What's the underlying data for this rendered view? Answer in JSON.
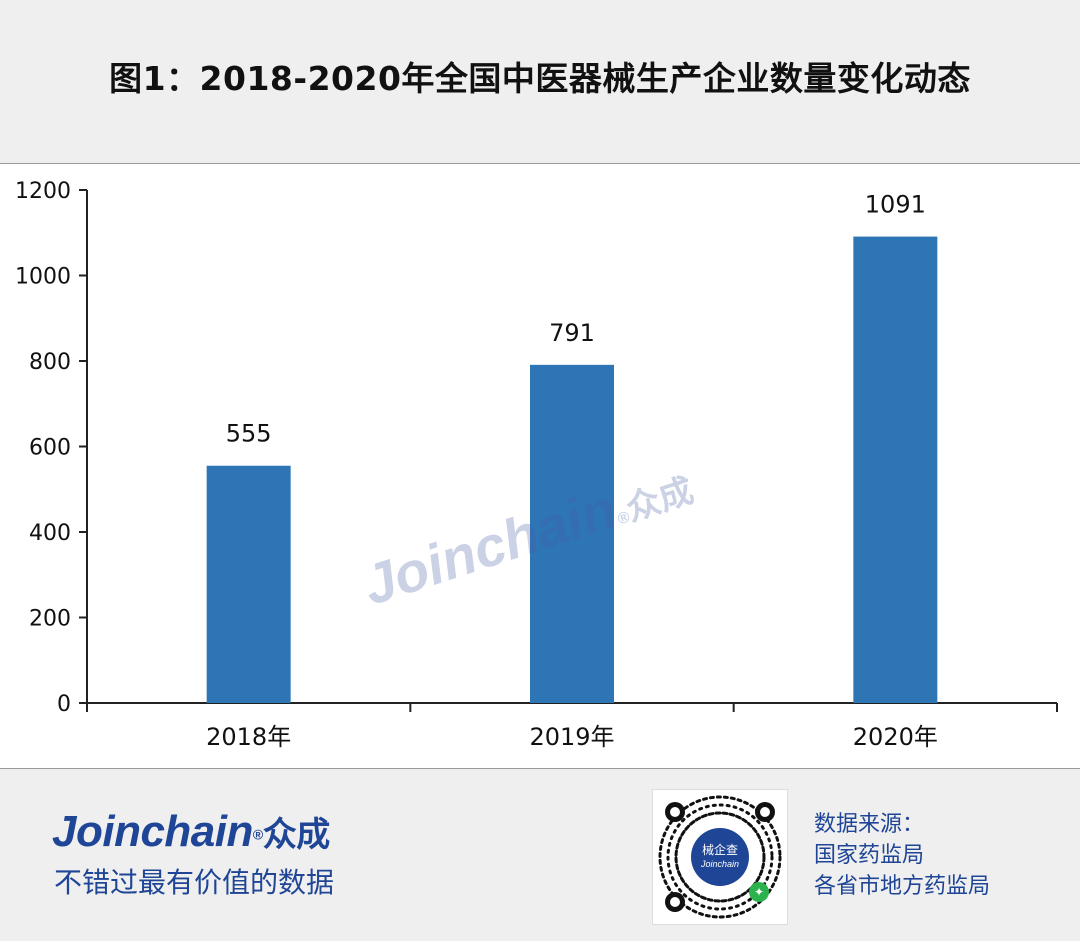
{
  "header": {
    "title": "图1：2018-2020年全国中医器械生产企业数量变化动态"
  },
  "chart_data": {
    "type": "bar",
    "categories": [
      "2018年",
      "2019年",
      "2020年"
    ],
    "values": [
      555,
      791,
      1091
    ],
    "data_labels": [
      "555",
      "791",
      "1091"
    ],
    "ylim": [
      0,
      1200
    ],
    "yticks": [
      0,
      200,
      400,
      600,
      800,
      1000,
      1200
    ],
    "ytick_labels": [
      "0",
      "200",
      "400",
      "600",
      "800",
      "1000",
      "1200"
    ],
    "grid": false,
    "bar_color": "#2e75b6"
  },
  "watermark": {
    "text": "Joinchain",
    "registered": "®",
    "cn": "众成"
  },
  "footer": {
    "brand": {
      "name": "Joinchain",
      "registered": "®",
      "cn": "众成"
    },
    "slogan": "不错过最有价值的数据",
    "qr": {
      "line1": "械企查",
      "line2": "Joinchain",
      "mini_icon": "mini-program-icon"
    },
    "source": {
      "label": "数据来源：",
      "line1": "国家药监局",
      "line2": "各省市地方药监局"
    }
  },
  "colors": {
    "brand": "#1f4596",
    "bar": "#2e75b6",
    "background": "#efefef"
  }
}
